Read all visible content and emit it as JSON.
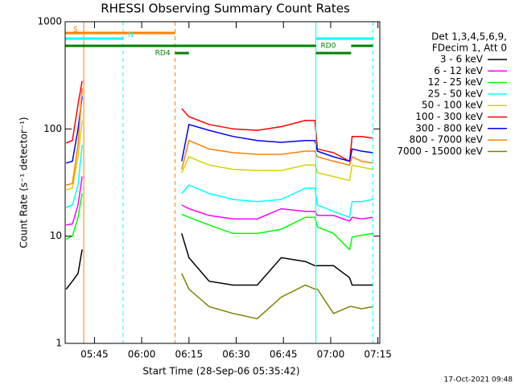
{
  "chart_data": {
    "type": "line",
    "title": "RHESSI Observing Summary Count Rates",
    "x_label": "Start Time (28-Sep-06 05:35:42)",
    "y_label": "Count Rate (s⁻¹ detector⁻¹)",
    "legend_header": [
      "Det 1,3,4,5,6,9,",
      "FDecim 1, Att 0"
    ],
    "footer": "17-Oct-2021 09:48",
    "log_y": true,
    "legend": "right",
    "xlim": [
      335.7,
      435.6
    ],
    "xticks": [
      {
        "value": 345,
        "label": "05:45"
      },
      {
        "value": 360,
        "label": "06:00"
      },
      {
        "value": 375,
        "label": "06:15"
      },
      {
        "value": 390,
        "label": "06:30"
      },
      {
        "value": 405,
        "label": "06:45"
      },
      {
        "value": 420,
        "label": "07:00"
      },
      {
        "value": 435,
        "label": "07:15"
      }
    ],
    "ylim": [
      1,
      1000
    ],
    "yticks": [
      1,
      10,
      100,
      1000
    ],
    "x": [
      336.0,
      338.0,
      339.8,
      341.1,
      356.0,
      372.7,
      375.0,
      381.4,
      389.0,
      396.7,
      404.3,
      412.0,
      415.0,
      415.8,
      420.9,
      426.0,
      426.8,
      429.8,
      433.4
    ],
    "series": [
      {
        "name": "3 - 6 keV",
        "color": "#000000",
        "values": [
          3.2,
          3.8,
          4.5,
          7.5,
          null,
          10.6,
          6.3,
          3.8,
          3.5,
          3.5,
          6.3,
          5.8,
          5.3,
          5.3,
          5.3,
          4.1,
          3.5,
          3.5,
          3.5
        ]
      },
      {
        "name": "6 - 12 keV",
        "color": "#ff00ff",
        "values": [
          12.7,
          13,
          19.5,
          36,
          null,
          19.5,
          18,
          15.6,
          14.5,
          14.5,
          18,
          17,
          17,
          15.6,
          15.6,
          13.8,
          15,
          14.5,
          15
        ]
      },
      {
        "name": "12 - 25 keV",
        "color": "#00ff00",
        "values": [
          9.4,
          10,
          15,
          25,
          null,
          16,
          15,
          12.7,
          10.6,
          10.6,
          11.6,
          15,
          15,
          12.2,
          10.6,
          7.5,
          9.8,
          10.2,
          10.6
        ]
      },
      {
        "name": "25 - 50 keV",
        "color": "#00ffff",
        "values": [
          18.5,
          19.5,
          30,
          71,
          null,
          25,
          30,
          25,
          22,
          21,
          22,
          28,
          28,
          19.5,
          17,
          15,
          21,
          21,
          22
        ]
      },
      {
        "name": "50 - 100 keV",
        "color": "#d4d400",
        "values": [
          27,
          28,
          55,
          120,
          null,
          39,
          55,
          46,
          42,
          41,
          41,
          46,
          46,
          39,
          36,
          33,
          46,
          44,
          42
        ]
      },
      {
        "name": "100 - 300 keV",
        "color": "#ff0000",
        "values": [
          74,
          78,
          170,
          280,
          null,
          155,
          130,
          110,
          100,
          97,
          105,
          120,
          120,
          65,
          60,
          50,
          85,
          85,
          82
        ]
      },
      {
        "name": "300 - 800 keV",
        "color": "#0000ff",
        "values": [
          48,
          50,
          100,
          200,
          null,
          50,
          110,
          97,
          85,
          78,
          75,
          78,
          78,
          62,
          55,
          50,
          65,
          62,
          60
        ]
      },
      {
        "name": "800 - 7000 keV",
        "color": "#ff8000",
        "values": [
          30,
          31,
          71,
          240,
          null,
          42,
          78,
          65,
          60,
          58,
          58,
          62,
          62,
          55,
          50,
          46,
          55,
          50,
          48
        ]
      },
      {
        "name": "7000 - 15000 keV",
        "color": "#808000",
        "values": [
          null,
          null,
          null,
          null,
          null,
          4.5,
          3.2,
          2.2,
          1.9,
          1.7,
          2.7,
          3.5,
          3.2,
          3.2,
          1.9,
          2.2,
          2.2,
          2.1,
          2.2
        ]
      }
    ],
    "flags": [
      {
        "label": "S",
        "color": "#ff8000",
        "segments": [
          [
            335.7,
            370.6
          ]
        ]
      },
      {
        "label": "N",
        "color": "#00ffff",
        "segments": [
          [
            335.7,
            354.1
          ],
          [
            415.3,
            433.4
          ]
        ]
      },
      {
        "label": "RD0",
        "color": "#008000",
        "segments": [
          [
            335.7,
            415.3
          ],
          [
            426.5,
            433.4
          ]
        ]
      },
      {
        "label": "RD4",
        "color": "#008000",
        "segments": [
          [
            370.6,
            375.0
          ],
          [
            415.3,
            426.5
          ]
        ]
      }
    ],
    "vlines": [
      {
        "x": 335.7,
        "color": "#00ffff",
        "dashed": false
      },
      {
        "x": 341.6,
        "color": "#ff8000",
        "dashed": false
      },
      {
        "x": 354.1,
        "color": "#00ffff",
        "dashed": true
      },
      {
        "x": 370.6,
        "color": "#ff8000",
        "dashed": true
      },
      {
        "x": 415.3,
        "color": "#00ffff",
        "dashed": false
      },
      {
        "x": 433.4,
        "color": "#00ffff",
        "dashed": true
      }
    ]
  }
}
